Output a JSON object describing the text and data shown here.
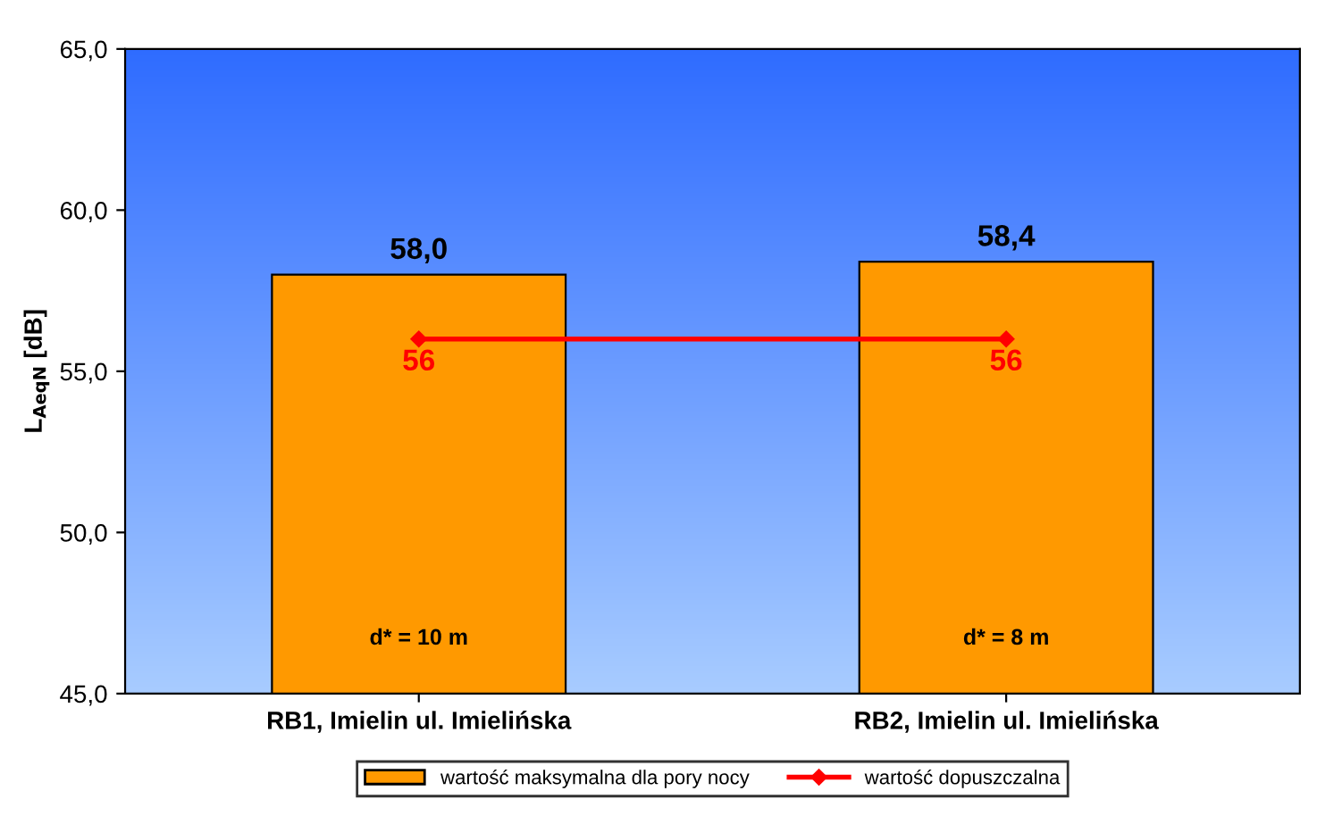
{
  "chart_data": {
    "type": "bar",
    "ylabel": "L$_{AeqN}$ [dB]",
    "categories": [
      "RB1, Imielin ul. Imielińska",
      "RB2, Imielin ul. Imielińska"
    ],
    "series": [
      {
        "name": "wartość maksymalna dla pory nocy",
        "color": "#ff9900",
        "values": [
          58.0,
          58.4
        ],
        "value_labels": [
          "58,0",
          "58,4"
        ]
      },
      {
        "name": "wartość dopuszczalna",
        "type": "line",
        "color": "#ff0000",
        "values": [
          56,
          56
        ],
        "value_labels": [
          "56",
          "56"
        ],
        "marker": "diamond"
      }
    ],
    "ylim": [
      45,
      65
    ],
    "yticks": [
      {
        "value": 45,
        "label": "45,0"
      },
      {
        "value": 50,
        "label": "50,0"
      },
      {
        "value": 55,
        "label": "55,0"
      },
      {
        "value": 60,
        "label": "60,0"
      },
      {
        "value": 65,
        "label": "65,0"
      }
    ],
    "annotations": [
      "d* = 10 m",
      "d* = 8 m"
    ],
    "legend": "bottom",
    "grid": false
  }
}
